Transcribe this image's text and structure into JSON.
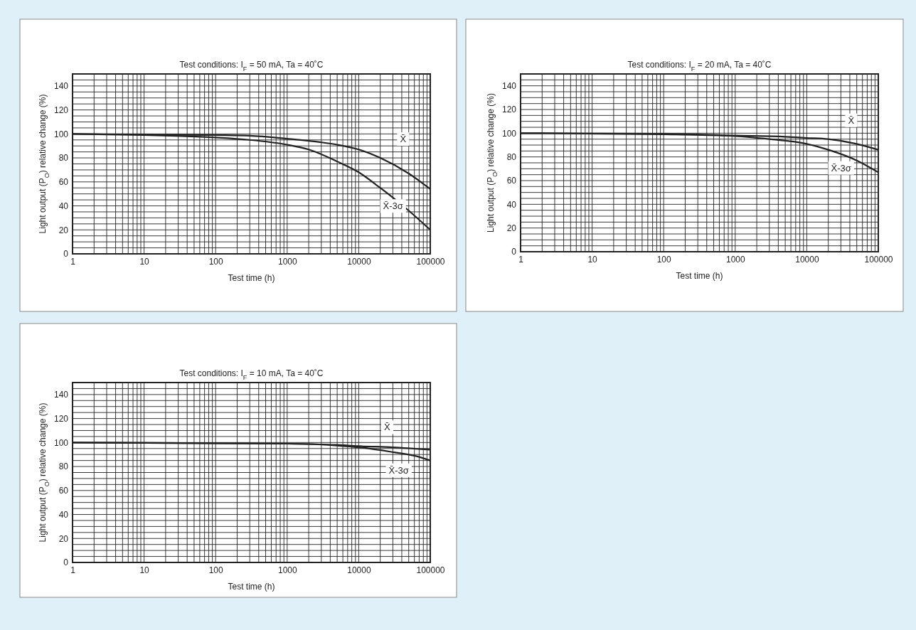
{
  "chart_data": [
    {
      "type": "line",
      "title": "Test conditions: I$_{F}$ = 50 mA, Ta = 40˚C",
      "xlabel": "Test time (h)",
      "ylabel": "Light output (P$_{O}$) relative change (%)",
      "log": "x",
      "grid": true,
      "xlim": [
        1,
        100000
      ],
      "ylim": [
        0,
        150
      ],
      "xticks": [
        1,
        {
          "value": 2,
          "label": null
        },
        {
          "value": 3,
          "label": null
        },
        {
          "value": 4,
          "label": null
        },
        {
          "value": 5,
          "label": null
        },
        {
          "value": 6,
          "label": null
        },
        {
          "value": 7,
          "label": null
        },
        {
          "value": 8,
          "label": null
        },
        {
          "value": 9,
          "label": null
        },
        10,
        {
          "value": 20,
          "label": null
        },
        {
          "value": 30,
          "label": null
        },
        {
          "value": 40,
          "label": null
        },
        {
          "value": 50,
          "label": null
        },
        {
          "value": 60,
          "label": null
        },
        {
          "value": 70,
          "label": null
        },
        {
          "value": 80,
          "label": null
        },
        {
          "value": 90,
          "label": null
        },
        100,
        {
          "value": 200,
          "label": null
        },
        {
          "value": 300,
          "label": null
        },
        {
          "value": 400,
          "label": null
        },
        {
          "value": 500,
          "label": null
        },
        {
          "value": 600,
          "label": null
        },
        {
          "value": 700,
          "label": null
        },
        {
          "value": 800,
          "label": null
        },
        {
          "value": 900,
          "label": null
        },
        1000,
        {
          "value": 2000,
          "label": null
        },
        {
          "value": 3000,
          "label": null
        },
        {
          "value": 4000,
          "label": null
        },
        {
          "value": 5000,
          "label": null
        },
        {
          "value": 6000,
          "label": null
        },
        {
          "value": 7000,
          "label": null
        },
        {
          "value": 8000,
          "label": null
        },
        {
          "value": 9000,
          "label": null
        },
        10000,
        {
          "value": 20000,
          "label": null
        },
        {
          "value": 30000,
          "label": null
        },
        {
          "value": 40000,
          "label": null
        },
        {
          "value": 50000,
          "label": null
        },
        {
          "value": 60000,
          "label": null
        },
        {
          "value": 70000,
          "label": null
        },
        {
          "value": 80000,
          "label": null
        },
        {
          "value": 90000,
          "label": null
        },
        100000
      ],
      "yticks": [
        0,
        {
          "value": 5,
          "label": null
        },
        {
          "value": 10,
          "label": null
        },
        {
          "value": 15,
          "label": null
        },
        20,
        {
          "value": 25,
          "label": null
        },
        {
          "value": 30,
          "label": null
        },
        {
          "value": 35,
          "label": null
        },
        40,
        {
          "value": 45,
          "label": null
        },
        {
          "value": 50,
          "label": null
        },
        {
          "value": 55,
          "label": null
        },
        60,
        {
          "value": 65,
          "label": null
        },
        {
          "value": 70,
          "label": null
        },
        {
          "value": 75,
          "label": null
        },
        80,
        {
          "value": 85,
          "label": null
        },
        {
          "value": 90,
          "label": null
        },
        {
          "value": 95,
          "label": null
        },
        100,
        {
          "value": 105,
          "label": null
        },
        {
          "value": 110,
          "label": null
        },
        {
          "value": 115,
          "label": null
        },
        120,
        {
          "value": 125,
          "label": null
        },
        {
          "value": 130,
          "label": null
        },
        {
          "value": 135,
          "label": null
        },
        140,
        {
          "value": 145,
          "label": null
        },
        {
          "value": 150,
          "label": null
        }
      ],
      "series": [
        {
          "name": "X̄",
          "color": "#222222",
          "x": [
            1,
            10,
            100,
            300,
            1000,
            3000,
            5000,
            10000,
            20000,
            50000,
            100000
          ],
          "values": [
            100,
            99.5,
            99,
            98.5,
            96,
            93,
            91,
            87,
            80,
            67,
            54
          ]
        },
        {
          "name": "X̄-3σ",
          "color": "#222222",
          "x": [
            1,
            10,
            100,
            300,
            1000,
            2000,
            5000,
            10000,
            20000,
            50000,
            100000
          ],
          "values": [
            100,
            99,
            97,
            95,
            91,
            87,
            77,
            68,
            55,
            36,
            20
          ]
        }
      ]
    },
    {
      "type": "line",
      "title": "Test conditions: I$_{F}$ = 20 mA, Ta = 40˚C",
      "xlabel": "Test time (h)",
      "ylabel": "Light output (P$_{O}$) relative change (%)",
      "log": "x",
      "grid": true,
      "xlim": [
        1,
        100000
      ],
      "ylim": [
        0,
        150
      ],
      "xticks": [
        1,
        {
          "value": 2,
          "label": null
        },
        {
          "value": 3,
          "label": null
        },
        {
          "value": 4,
          "label": null
        },
        {
          "value": 5,
          "label": null
        },
        {
          "value": 6,
          "label": null
        },
        {
          "value": 7,
          "label": null
        },
        {
          "value": 8,
          "label": null
        },
        {
          "value": 9,
          "label": null
        },
        10,
        {
          "value": 20,
          "label": null
        },
        {
          "value": 30,
          "label": null
        },
        {
          "value": 40,
          "label": null
        },
        {
          "value": 50,
          "label": null
        },
        {
          "value": 60,
          "label": null
        },
        {
          "value": 70,
          "label": null
        },
        {
          "value": 80,
          "label": null
        },
        {
          "value": 90,
          "label": null
        },
        100,
        {
          "value": 200,
          "label": null
        },
        {
          "value": 300,
          "label": null
        },
        {
          "value": 400,
          "label": null
        },
        {
          "value": 500,
          "label": null
        },
        {
          "value": 600,
          "label": null
        },
        {
          "value": 700,
          "label": null
        },
        {
          "value": 800,
          "label": null
        },
        {
          "value": 900,
          "label": null
        },
        1000,
        {
          "value": 2000,
          "label": null
        },
        {
          "value": 3000,
          "label": null
        },
        {
          "value": 4000,
          "label": null
        },
        {
          "value": 5000,
          "label": null
        },
        {
          "value": 6000,
          "label": null
        },
        {
          "value": 7000,
          "label": null
        },
        {
          "value": 8000,
          "label": null
        },
        {
          "value": 9000,
          "label": null
        },
        10000,
        {
          "value": 20000,
          "label": null
        },
        {
          "value": 30000,
          "label": null
        },
        {
          "value": 40000,
          "label": null
        },
        {
          "value": 50000,
          "label": null
        },
        {
          "value": 60000,
          "label": null
        },
        {
          "value": 70000,
          "label": null
        },
        {
          "value": 80000,
          "label": null
        },
        {
          "value": 90000,
          "label": null
        },
        100000
      ],
      "yticks": [
        0,
        {
          "value": 5,
          "label": null
        },
        {
          "value": 10,
          "label": null
        },
        {
          "value": 15,
          "label": null
        },
        20,
        {
          "value": 25,
          "label": null
        },
        {
          "value": 30,
          "label": null
        },
        {
          "value": 35,
          "label": null
        },
        40,
        {
          "value": 45,
          "label": null
        },
        {
          "value": 50,
          "label": null
        },
        {
          "value": 55,
          "label": null
        },
        60,
        {
          "value": 65,
          "label": null
        },
        {
          "value": 70,
          "label": null
        },
        {
          "value": 75,
          "label": null
        },
        80,
        {
          "value": 85,
          "label": null
        },
        {
          "value": 90,
          "label": null
        },
        {
          "value": 95,
          "label": null
        },
        100,
        {
          "value": 105,
          "label": null
        },
        {
          "value": 110,
          "label": null
        },
        {
          "value": 115,
          "label": null
        },
        120,
        {
          "value": 125,
          "label": null
        },
        {
          "value": 130,
          "label": null
        },
        {
          "value": 135,
          "label": null
        },
        140,
        {
          "value": 145,
          "label": null
        },
        {
          "value": 150,
          "label": null
        }
      ],
      "series": [
        {
          "name": "X̄",
          "color": "#222222",
          "x": [
            1,
            100,
            1000,
            5000,
            10000,
            20000,
            50000,
            100000
          ],
          "values": [
            100,
            99.5,
            98,
            97,
            96,
            95,
            91,
            86
          ]
        },
        {
          "name": "X̄-3σ",
          "color": "#222222",
          "x": [
            1,
            100,
            1000,
            3000,
            10000,
            20000,
            50000,
            100000
          ],
          "values": [
            100,
            99,
            97.5,
            95,
            91,
            86,
            77,
            67
          ]
        }
      ]
    },
    {
      "type": "line",
      "title": "Test conditions: I$_{F}$ = 10 mA, Ta = 40˚C",
      "xlabel": "Test time (h)",
      "ylabel": "Light output (P$_{O}$) relative change (%)",
      "log": "x",
      "grid": true,
      "xlim": [
        1,
        100000
      ],
      "ylim": [
        0,
        150
      ],
      "xticks": [
        1,
        {
          "value": 2,
          "label": null
        },
        {
          "value": 3,
          "label": null
        },
        {
          "value": 4,
          "label": null
        },
        {
          "value": 5,
          "label": null
        },
        {
          "value": 6,
          "label": null
        },
        {
          "value": 7,
          "label": null
        },
        {
          "value": 8,
          "label": null
        },
        {
          "value": 9,
          "label": null
        },
        10,
        {
          "value": 20,
          "label": null
        },
        {
          "value": 30,
          "label": null
        },
        {
          "value": 40,
          "label": null
        },
        {
          "value": 50,
          "label": null
        },
        {
          "value": 60,
          "label": null
        },
        {
          "value": 70,
          "label": null
        },
        {
          "value": 80,
          "label": null
        },
        {
          "value": 90,
          "label": null
        },
        100,
        {
          "value": 200,
          "label": null
        },
        {
          "value": 300,
          "label": null
        },
        {
          "value": 400,
          "label": null
        },
        {
          "value": 500,
          "label": null
        },
        {
          "value": 600,
          "label": null
        },
        {
          "value": 700,
          "label": null
        },
        {
          "value": 800,
          "label": null
        },
        {
          "value": 900,
          "label": null
        },
        1000,
        {
          "value": 2000,
          "label": null
        },
        {
          "value": 3000,
          "label": null
        },
        {
          "value": 4000,
          "label": null
        },
        {
          "value": 5000,
          "label": null
        },
        {
          "value": 6000,
          "label": null
        },
        {
          "value": 7000,
          "label": null
        },
        {
          "value": 8000,
          "label": null
        },
        {
          "value": 9000,
          "label": null
        },
        10000,
        {
          "value": 20000,
          "label": null
        },
        {
          "value": 30000,
          "label": null
        },
        {
          "value": 40000,
          "label": null
        },
        {
          "value": 50000,
          "label": null
        },
        {
          "value": 60000,
          "label": null
        },
        {
          "value": 70000,
          "label": null
        },
        {
          "value": 80000,
          "label": null
        },
        {
          "value": 90000,
          "label": null
        },
        100000
      ],
      "yticks": [
        0,
        {
          "value": 5,
          "label": null
        },
        {
          "value": 10,
          "label": null
        },
        {
          "value": 15,
          "label": null
        },
        20,
        {
          "value": 25,
          "label": null
        },
        {
          "value": 30,
          "label": null
        },
        {
          "value": 35,
          "label": null
        },
        40,
        {
          "value": 45,
          "label": null
        },
        {
          "value": 50,
          "label": null
        },
        {
          "value": 55,
          "label": null
        },
        60,
        {
          "value": 65,
          "label": null
        },
        {
          "value": 70,
          "label": null
        },
        {
          "value": 75,
          "label": null
        },
        80,
        {
          "value": 85,
          "label": null
        },
        {
          "value": 90,
          "label": null
        },
        {
          "value": 95,
          "label": null
        },
        100,
        {
          "value": 105,
          "label": null
        },
        {
          "value": 110,
          "label": null
        },
        {
          "value": 115,
          "label": null
        },
        120,
        {
          "value": 125,
          "label": null
        },
        {
          "value": 130,
          "label": null
        },
        {
          "value": 135,
          "label": null
        },
        140,
        {
          "value": 145,
          "label": null
        },
        {
          "value": 150,
          "label": null
        }
      ],
      "series": [
        {
          "name": "X̄",
          "color": "#222222",
          "x": [
            1,
            1000,
            5000,
            10000,
            30000,
            100000
          ],
          "values": [
            100,
            99,
            98,
            97,
            96,
            94
          ]
        },
        {
          "name": "X̄-3σ",
          "color": "#222222",
          "x": [
            1,
            1000,
            5000,
            10000,
            30000,
            60000,
            100000
          ],
          "values": [
            100,
            99,
            97.5,
            96,
            92,
            89,
            85
          ]
        }
      ]
    }
  ]
}
